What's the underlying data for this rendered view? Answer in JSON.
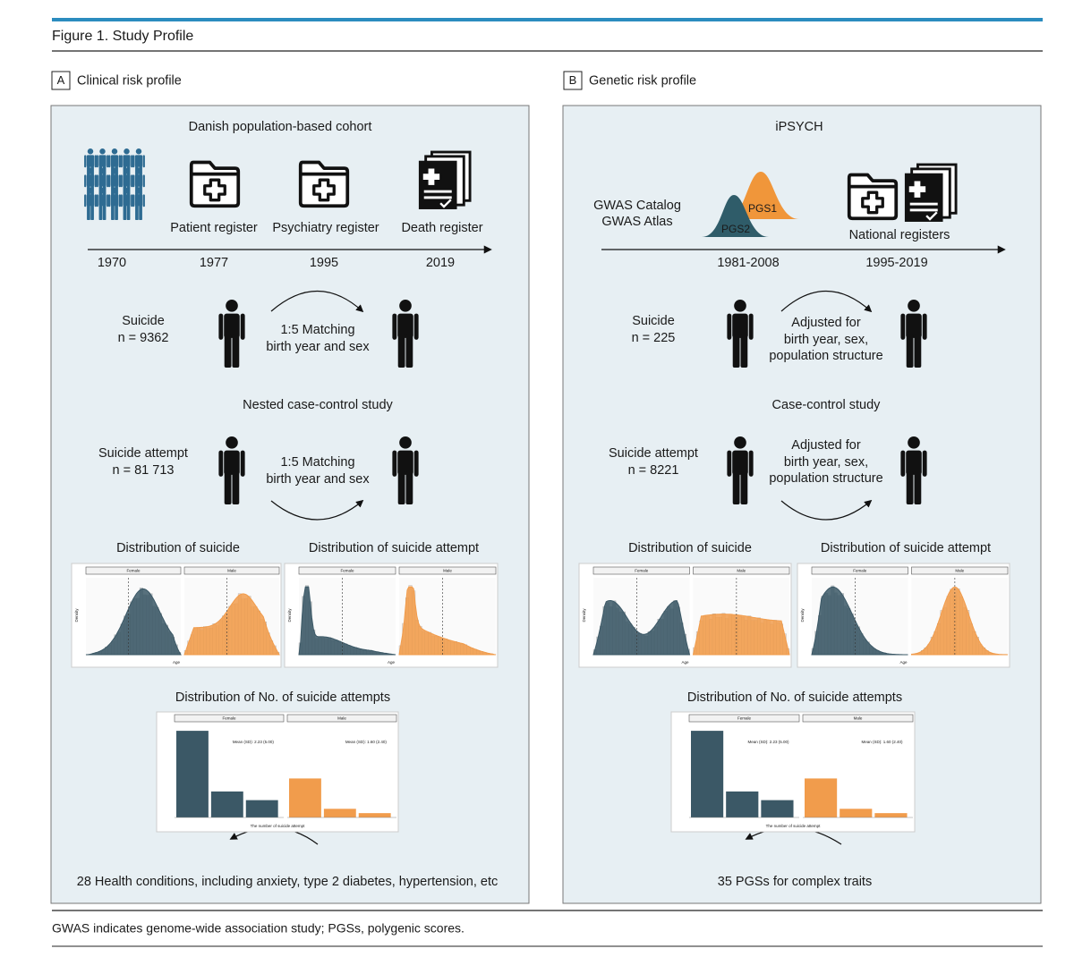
{
  "header": {
    "title": "Figure 1. Study Profile"
  },
  "panel_a": {
    "letter": "A",
    "title": "Clinical risk profile",
    "cohort": "Danish population-based cohort",
    "registers": [
      "Patient register",
      "Psychiatry register",
      "Death register"
    ],
    "years": [
      "1970",
      "1977",
      "1995",
      "2019"
    ],
    "suicide_label": "Suicide",
    "suicide_n": "n = 9362",
    "matching_suicide": [
      "1:5 Matching",
      "birth year and sex"
    ],
    "study": "Nested case-control study",
    "attempt_label": "Suicide attempt",
    "attempt_n": "n = 81 713",
    "matching_attempt": [
      "1:5 Matching",
      "birth year and sex"
    ],
    "dist_suicide": "Distribution of suicide",
    "dist_attempt": "Distribution of suicide attempt",
    "count_title": "Distribution of No. of suicide attempts",
    "outcome": "28 Health conditions, including anxiety, type 2 diabetes, hypertension, etc"
  },
  "panel_b": {
    "letter": "B",
    "title": "Genetic risk profile",
    "cohort": "iPSYCH",
    "sources": [
      "GWAS Catalog",
      "GWAS Atlas"
    ],
    "pgs": [
      "PGS1",
      "PGS2"
    ],
    "registers": "National registers",
    "years": [
      "1981-2008",
      "1995-2019"
    ],
    "suicide_label": "Suicide",
    "suicide_n": "n = 225",
    "adjust_suicide": [
      "Adjusted for",
      "birth year, sex,",
      "population structure"
    ],
    "study": "Case-control study",
    "attempt_label": "Suicide attempt",
    "attempt_n": "n = 8221",
    "adjust_attempt": [
      "Adjusted for",
      "birth year, sex,",
      "population structure"
    ],
    "dist_suicide": "Distribution of suicide",
    "dist_attempt": "Distribution of suicide attempt",
    "count_title": "Distribution of No. of suicide attempts",
    "outcome": "35 PGSs for complex traits"
  },
  "mini_chart": {
    "female": "Female",
    "male": "Male",
    "x_axis": "Age",
    "y_axis": "Density",
    "count_axis": "The number of suicide attempt",
    "mean_female": "Mean (SD): 2.23 (5.00)",
    "mean_male": "Mean (SD): 1.60 (2.40)"
  },
  "footnote": "GWAS indicates genome-wide association study; PGSs, polygenic scores."
}
